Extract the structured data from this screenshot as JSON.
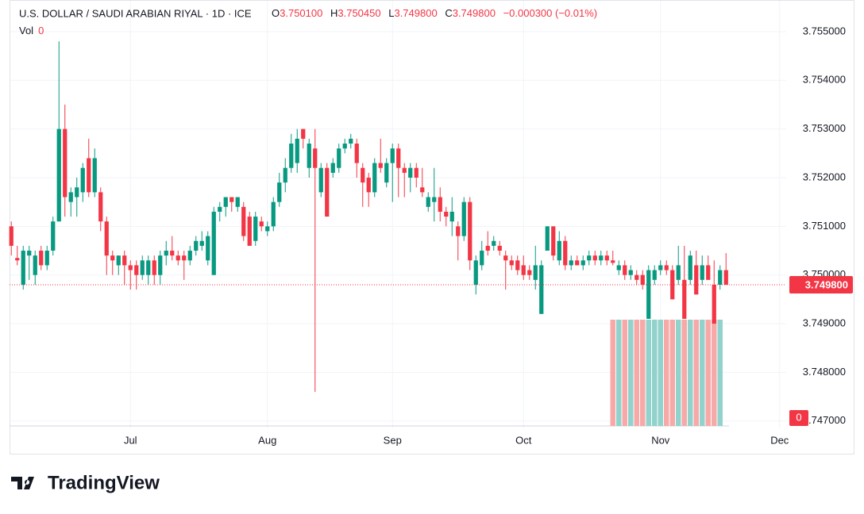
{
  "chart_data": {
    "type": "candlestick",
    "title": "U.S. DOLLAR / SAUDI ARABIAN RIYAL · 1D · ICE",
    "ohlc": {
      "open": {
        "label": "O",
        "value": "3.750100"
      },
      "high": {
        "label": "H",
        "value": "3.750450"
      },
      "low": {
        "label": "L",
        "value": "3.749800"
      },
      "close": {
        "label": "C",
        "value": "3.749800"
      },
      "change": "−0.000300 (−0.01%)"
    },
    "volume_label": "Vol",
    "volume_value": "0",
    "last_price": {
      "value": 3.7498,
      "label": "3.749800"
    },
    "volume_axis_label": "0",
    "brand": "TradingView",
    "up_color": "#089981",
    "down_color": "#f23645",
    "volume_up_color": "#92d2cc",
    "volume_down_color": "#f7a9a7",
    "grid": true,
    "xlim": [
      -0.3,
      130.1
    ],
    "xticks": [
      {
        "value": 20,
        "label": "Jul"
      },
      {
        "value": 43,
        "label": "Aug"
      },
      {
        "value": 64,
        "label": "Sep"
      },
      {
        "value": 86,
        "label": "Oct"
      },
      {
        "value": 109,
        "label": "Nov"
      },
      {
        "value": 129,
        "label": "Dec"
      }
    ],
    "ylim": [
      3.74685,
      3.75565
    ],
    "yticks": [
      {
        "value": 3.755,
        "label": "3.755000"
      },
      {
        "value": 3.754,
        "label": "3.754000"
      },
      {
        "value": 3.753,
        "label": "3.753000"
      },
      {
        "value": 3.752,
        "label": "3.752000"
      },
      {
        "value": 3.751,
        "label": "3.751000"
      },
      {
        "value": 3.75,
        "label": "3.750000"
      },
      {
        "value": 3.749,
        "label": "3.749000"
      },
      {
        "value": 3.748,
        "label": "3.748000"
      },
      {
        "value": 3.747,
        "label": "3.747000"
      }
    ],
    "candles": [
      [
        3.751,
        3.7511,
        3.7504,
        3.7506
      ],
      [
        3.75035,
        3.7506,
        3.7502,
        3.7503
      ],
      [
        3.7498,
        3.7506,
        3.7497,
        3.7505
      ],
      [
        3.7504,
        3.7506,
        3.7499,
        3.7505
      ],
      [
        3.75,
        3.7505,
        3.7498,
        3.7504
      ],
      [
        3.7505,
        3.7506,
        3.7501,
        3.7502
      ],
      [
        3.7502,
        3.7506,
        3.7501,
        3.7505
      ],
      [
        3.7505,
        3.7512,
        3.7504,
        3.7511
      ],
      [
        3.7511,
        3.7548,
        3.7511,
        3.753
      ],
      [
        3.753,
        3.7535,
        3.7512,
        3.7516
      ],
      [
        3.7515,
        3.7518,
        3.7512,
        3.7517
      ],
      [
        3.7516,
        3.752,
        3.7512,
        3.7518
      ],
      [
        3.7517,
        3.7523,
        3.7515,
        3.7522
      ],
      [
        3.7524,
        3.7528,
        3.7516,
        3.7517
      ],
      [
        3.7517,
        3.7526,
        3.7516,
        3.7524
      ],
      [
        3.7517,
        3.7518,
        3.7509,
        3.7511
      ],
      [
        3.7511,
        3.7512,
        3.75,
        3.7504
      ],
      [
        3.7504,
        3.7505,
        3.75,
        3.7503
      ],
      [
        3.7502,
        3.7504,
        3.75,
        3.7504
      ],
      [
        3.7504,
        3.7505,
        3.7498,
        3.7502
      ],
      [
        3.7502,
        3.7503,
        3.7497,
        3.7501
      ],
      [
        3.7502,
        3.7503,
        3.7497,
        3.75
      ],
      [
        3.75,
        3.7504,
        3.7499,
        3.7503
      ],
      [
        3.75,
        3.7504,
        3.7498,
        3.7503
      ],
      [
        3.7503,
        3.7504,
        3.7498,
        3.75
      ],
      [
        3.75,
        3.7505,
        3.7498,
        3.7504
      ],
      [
        3.7504,
        3.7507,
        3.7502,
        3.7505
      ],
      [
        3.7505,
        3.7508,
        3.7503,
        3.7504
      ],
      [
        3.7504,
        3.7505,
        3.7502,
        3.7503
      ],
      [
        3.7504,
        3.7505,
        3.7499,
        3.7503
      ],
      [
        3.7503,
        3.7506,
        3.7502,
        3.7505
      ],
      [
        3.7505,
        3.7508,
        3.7504,
        3.7507
      ],
      [
        3.7506,
        3.7509,
        3.7505,
        3.7507
      ],
      [
        3.7503,
        3.7509,
        3.7502,
        3.7508
      ],
      [
        3.75,
        3.7514,
        3.75,
        3.7513
      ],
      [
        3.7513,
        3.7515,
        3.7511,
        3.7514
      ],
      [
        3.7514,
        3.7516,
        3.7512,
        3.7516
      ],
      [
        3.7516,
        3.7516,
        3.7513,
        3.7515
      ],
      [
        3.7514,
        3.7516,
        3.7513,
        3.7516
      ],
      [
        3.7514,
        3.7515,
        3.7507,
        3.7508
      ],
      [
        3.7512,
        3.7513,
        3.7506,
        3.7506
      ],
      [
        3.7507,
        3.7513,
        3.7506,
        3.7512
      ],
      [
        3.7511,
        3.7512,
        3.7509,
        3.751
      ],
      [
        3.7509,
        3.7511,
        3.7508,
        3.751
      ],
      [
        3.751,
        3.7516,
        3.7509,
        3.7515
      ],
      [
        3.7515,
        3.7521,
        3.7514,
        3.7519
      ],
      [
        3.7519,
        3.7524,
        3.7517,
        3.7522
      ],
      [
        3.7522,
        3.7529,
        3.7521,
        3.7527
      ],
      [
        3.7523,
        3.753,
        3.7521,
        3.7528
      ],
      [
        3.753,
        3.753,
        3.7526,
        3.7528
      ],
      [
        3.7522,
        3.7528,
        3.752,
        3.7527
      ],
      [
        3.7526,
        3.753,
        3.7476,
        3.7522
      ],
      [
        3.7517,
        3.7523,
        3.7516,
        3.7522
      ],
      [
        3.7522,
        3.7523,
        3.7512,
        3.7512
      ],
      [
        3.7521,
        3.7524,
        3.752,
        3.7523
      ],
      [
        3.7522,
        3.7527,
        3.7521,
        3.7526
      ],
      [
        3.7526,
        3.7528,
        3.7525,
        3.7527
      ],
      [
        3.7527,
        3.7529,
        3.7526,
        3.7528
      ],
      [
        3.7527,
        3.7528,
        3.752,
        3.7523
      ],
      [
        3.7522,
        3.7523,
        3.7514,
        3.7519
      ],
      [
        3.752,
        3.7521,
        3.7514,
        3.7517
      ],
      [
        3.7517,
        3.7524,
        3.7516,
        3.7523
      ],
      [
        3.7523,
        3.7528,
        3.7521,
        3.7522
      ],
      [
        3.7519,
        3.7524,
        3.7518,
        3.7523
      ],
      [
        3.7523,
        3.7527,
        3.7515,
        3.7526
      ],
      [
        3.7526,
        3.7527,
        3.7516,
        3.7522
      ],
      [
        3.7522,
        3.7523,
        3.7516,
        3.7521
      ],
      [
        3.752,
        3.7523,
        3.7517,
        3.7522
      ],
      [
        3.7522,
        3.7523,
        3.7518,
        3.752
      ],
      [
        3.7518,
        3.7522,
        3.7516,
        3.7517
      ],
      [
        3.7514,
        3.7517,
        3.7513,
        3.7516
      ],
      [
        3.7515,
        3.7522,
        3.7511,
        3.7516
      ],
      [
        3.7516,
        3.7518,
        3.7511,
        3.7513
      ],
      [
        3.7513,
        3.7514,
        3.751,
        3.7512
      ],
      [
        3.7511,
        3.7516,
        3.7508,
        3.7513
      ],
      [
        3.751,
        3.7511,
        3.7503,
        3.7508
      ],
      [
        3.7508,
        3.7516,
        3.7507,
        3.7515
      ],
      [
        3.7515,
        3.7516,
        3.7501,
        3.7503
      ],
      [
        3.7498,
        3.7504,
        3.7496,
        3.7503
      ],
      [
        3.7502,
        3.7507,
        3.7501,
        3.7505
      ],
      [
        3.7506,
        3.7509,
        3.7504,
        3.7505
      ],
      [
        3.7506,
        3.7508,
        3.7505,
        3.7507
      ],
      [
        3.7506,
        3.7507,
        3.7504,
        3.7505
      ],
      [
        3.7504,
        3.7505,
        3.7497,
        3.7503
      ],
      [
        3.7503,
        3.7504,
        3.7501,
        3.7502
      ],
      [
        3.7503,
        3.7504,
        3.75,
        3.7501
      ],
      [
        3.7502,
        3.7504,
        3.7499,
        3.75
      ],
      [
        3.7501,
        3.7502,
        3.7499,
        3.75
      ],
      [
        3.7499,
        3.7506,
        3.7497,
        3.7502
      ],
      [
        3.7492,
        3.7503,
        3.7492,
        3.7502
      ],
      [
        3.7505,
        3.751,
        3.7505,
        3.751
      ],
      [
        3.751,
        3.751,
        3.7503,
        3.7504
      ],
      [
        3.7503,
        3.7509,
        3.7502,
        3.7507
      ],
      [
        3.7507,
        3.7508,
        3.7501,
        3.7502
      ],
      [
        3.7502,
        3.7504,
        3.7501,
        3.7503
      ],
      [
        3.7503,
        3.7504,
        3.7502,
        3.7502
      ],
      [
        3.7502,
        3.7504,
        3.7501,
        3.7503
      ],
      [
        3.7503,
        3.7505,
        3.7502,
        3.7504
      ],
      [
        3.7504,
        3.7505,
        3.7502,
        3.7503
      ],
      [
        3.7503,
        3.7505,
        3.7502,
        3.7504
      ],
      [
        3.7504,
        3.7505,
        3.7502,
        3.7503
      ],
      [
        3.7503,
        3.7505,
        3.7502,
        3.75025
      ],
      [
        3.7501,
        3.7503,
        3.75,
        3.7502
      ],
      [
        3.7502,
        3.7503,
        3.7499,
        3.75
      ],
      [
        3.75,
        3.7502,
        3.7499,
        3.7501
      ],
      [
        3.75,
        3.7501,
        3.7498,
        3.7499
      ],
      [
        3.75,
        3.7501,
        3.7497,
        3.7498
      ],
      [
        3.7491,
        3.7502,
        3.7491,
        3.7501
      ],
      [
        3.7499,
        3.7502,
        3.7498,
        3.7501
      ],
      [
        3.7501,
        3.7503,
        3.75,
        3.7502
      ],
      [
        3.7502,
        3.7503,
        3.75,
        3.7501
      ],
      [
        3.7501,
        3.7502,
        3.7495,
        3.7495
      ],
      [
        3.7499,
        3.7506,
        3.7498,
        3.7502
      ],
      [
        3.7499,
        3.7506,
        3.7491,
        3.7491
      ],
      [
        3.7499,
        3.7505,
        3.7498,
        3.7504
      ],
      [
        3.7502,
        3.7505,
        3.7496,
        3.7496
      ],
      [
        3.7499,
        3.7504,
        3.7498,
        3.7502
      ],
      [
        3.7502,
        3.7504,
        3.7499,
        3.7499
      ],
      [
        3.7498,
        3.7503,
        3.749,
        3.749
      ],
      [
        3.7498,
        3.7502,
        3.7497,
        3.7501
      ],
      [
        3.7501,
        3.75045,
        3.7498,
        3.7498
      ]
    ],
    "volume": [
      null,
      null,
      null,
      null,
      null,
      null,
      null,
      null,
      null,
      null,
      null,
      null,
      null,
      null,
      null,
      null,
      null,
      null,
      null,
      null,
      null,
      null,
      null,
      null,
      null,
      null,
      null,
      null,
      null,
      null,
      null,
      null,
      null,
      null,
      null,
      null,
      null,
      null,
      null,
      null,
      null,
      null,
      null,
      null,
      null,
      null,
      null,
      null,
      null,
      null,
      null,
      null,
      null,
      null,
      null,
      null,
      null,
      null,
      null,
      null,
      null,
      null,
      null,
      null,
      null,
      null,
      null,
      null,
      null,
      null,
      null,
      null,
      null,
      null,
      null,
      null,
      null,
      null,
      null,
      null,
      null,
      null,
      null,
      null,
      null,
      null,
      null,
      null,
      null,
      null,
      null,
      null,
      null,
      null,
      null,
      null,
      null,
      null,
      null,
      null,
      null,
      1,
      1,
      1,
      1,
      1,
      1,
      1,
      1,
      1,
      1,
      1,
      1,
      1,
      1,
      1,
      1,
      1,
      1,
      1,
      null
    ],
    "volume_ylim": [
      0,
      1
    ]
  }
}
